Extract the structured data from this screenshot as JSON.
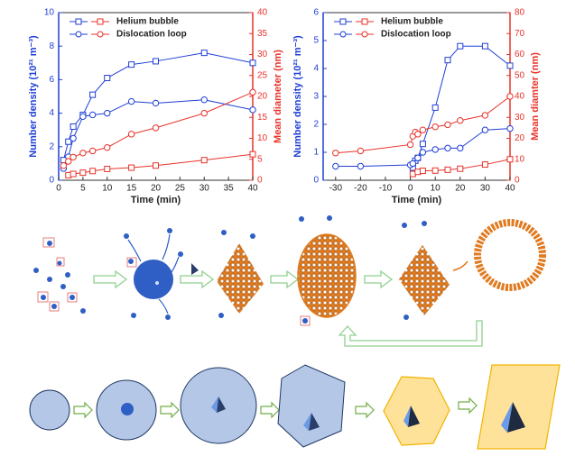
{
  "chart_data": [
    {
      "type": "line",
      "xlabel": "Time (min)",
      "ylabel": "Number density (10²¹ m⁻³)",
      "y2label": "Mean diameter (nm)",
      "xlim": [
        0,
        40
      ],
      "xticks": [
        0,
        5,
        10,
        15,
        20,
        25,
        30,
        35,
        40
      ],
      "ylim": [
        0,
        10
      ],
      "yticks": [
        0,
        2,
        4,
        6,
        8,
        10
      ],
      "y2lim": [
        0,
        40
      ],
      "y2ticks": [
        0,
        5,
        10,
        15,
        20,
        25,
        30,
        35,
        40
      ],
      "series": [
        {
          "name": "Helium bubble",
          "color": "#1f3fd6",
          "marker": "square",
          "x": [
            1,
            2,
            3,
            5,
            7,
            10,
            15,
            20,
            30,
            40
          ],
          "values": [
            1.2,
            2.3,
            3.2,
            3.9,
            5.1,
            6.1,
            6.9,
            7.1,
            7.6,
            7.0
          ]
        },
        {
          "name": "Dislocation loop",
          "color": "#1f3fd6",
          "marker": "circle",
          "x": [
            1,
            2,
            3,
            5,
            7,
            10,
            15,
            20,
            30,
            40
          ],
          "values": [
            0.7,
            1.4,
            2.5,
            3.8,
            3.9,
            4.0,
            4.7,
            4.6,
            4.8,
            4.2
          ]
        },
        {
          "name": "Helium bubble",
          "color": "#e8322a",
          "marker": "square",
          "axis": "y2",
          "x": [
            2,
            3,
            5,
            7,
            10,
            15,
            20,
            30,
            40
          ],
          "values": [
            1.2,
            1.5,
            1.8,
            2.2,
            2.7,
            3.0,
            3.5,
            4.8,
            6.2
          ]
        },
        {
          "name": "Dislocation loop",
          "color": "#e8322a",
          "marker": "circle",
          "axis": "y2",
          "x": [
            1,
            2,
            3,
            5,
            7,
            10,
            15,
            20,
            30,
            40
          ],
          "values": [
            3.5,
            4.5,
            5.5,
            6.5,
            7.0,
            7.8,
            11,
            12.5,
            16,
            21
          ]
        }
      ]
    },
    {
      "type": "line",
      "xlabel": "Time (min)",
      "ylabel": "Number density (10²¹ m⁻³)",
      "y2label": "Mean diamter (nm)",
      "xlim": [
        -35,
        40
      ],
      "xticks": [
        -30,
        -20,
        -10,
        0,
        10,
        20,
        30,
        40
      ],
      "ylim": [
        0,
        6
      ],
      "yticks": [
        0,
        1,
        2,
        3,
        4,
        5,
        6
      ],
      "y2lim": [
        0,
        80
      ],
      "y2ticks": [
        0,
        10,
        20,
        30,
        40,
        50,
        60,
        70,
        80
      ],
      "series": [
        {
          "name": "Helium bubble",
          "color": "#1f3fd6",
          "marker": "square",
          "x": [
            1,
            2,
            3,
            5,
            10,
            15,
            20,
            30,
            40
          ],
          "values": [
            0.45,
            0.7,
            0.8,
            1.3,
            2.6,
            4.3,
            4.8,
            4.8,
            4.1
          ]
        },
        {
          "name": "Dislocation loop",
          "color": "#1f3fd6",
          "marker": "circle",
          "x": [
            -30,
            -20,
            0,
            1,
            3,
            5,
            10,
            15,
            20,
            30,
            40
          ],
          "values": [
            0.5,
            0.5,
            0.55,
            0.6,
            0.8,
            1.0,
            1.1,
            1.15,
            1.15,
            1.8,
            1.85
          ]
        },
        {
          "name": "Helium bubble",
          "color": "#e8322a",
          "marker": "square",
          "axis": "y2",
          "x": [
            1,
            3,
            5,
            10,
            15,
            20,
            30,
            40
          ],
          "values": [
            3,
            4,
            4.5,
            4.6,
            5,
            5.5,
            7.5,
            10
          ]
        },
        {
          "name": "Dislocation loop",
          "color": "#e8322a",
          "marker": "circle",
          "axis": "y2",
          "x": [
            -30,
            -20,
            0,
            1,
            2,
            3,
            5,
            10,
            15,
            20,
            30,
            40
          ],
          "values": [
            13,
            14,
            17,
            21,
            23,
            22,
            24,
            25.5,
            26.5,
            28.5,
            31,
            40
          ]
        }
      ]
    }
  ]
}
